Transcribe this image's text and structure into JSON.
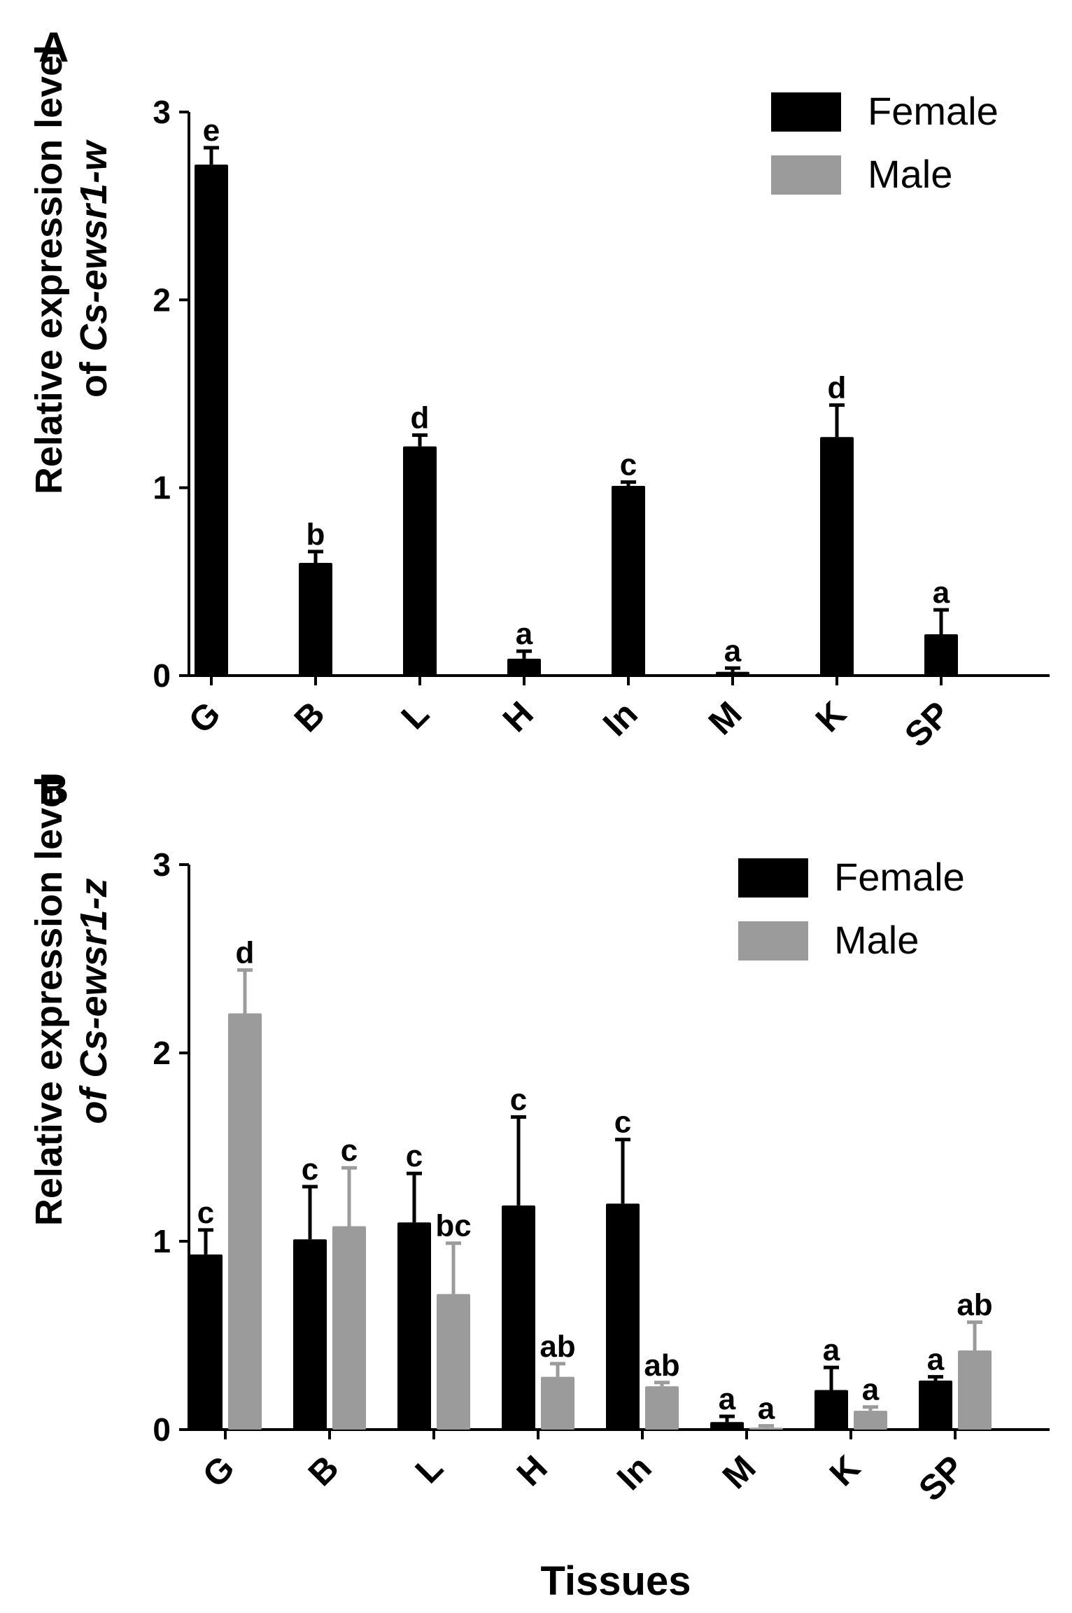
{
  "figure_xlabel": "Tissues",
  "chart_data": [
    {
      "panel": "A",
      "type": "bar",
      "ylabel_line1": "Relative expression level",
      "ylabel_line2_prefix": "of ",
      "ylabel_line2_italic": "Cs-ewsr1-w",
      "ylim": [
        0,
        3
      ],
      "yticks": [
        "0",
        "1",
        "2",
        "3"
      ],
      "categories": [
        "G",
        "B",
        "L",
        "H",
        "In",
        "M",
        "K",
        "SP"
      ],
      "legend": [
        "Female",
        "Male"
      ],
      "series": [
        {
          "name": "Female",
          "color": "#000000",
          "values": [
            2.72,
            0.6,
            1.22,
            0.09,
            1.01,
            0.02,
            1.27,
            0.22
          ],
          "errors": [
            0.09,
            0.06,
            0.06,
            0.04,
            0.02,
            0.02,
            0.17,
            0.13
          ],
          "labels": [
            "e",
            "b",
            "d",
            "a",
            "c",
            "a",
            "d",
            "a"
          ]
        }
      ]
    },
    {
      "panel": "B",
      "type": "bar",
      "ylabel_line1": "Relative expression level",
      "ylabel_line2_prefix": "of ",
      "ylabel_line2_italic": "Cs-ewsr1-z",
      "ylim": [
        0,
        3
      ],
      "yticks": [
        "0",
        "1",
        "2",
        "3"
      ],
      "categories": [
        "G",
        "B",
        "L",
        "H",
        "In",
        "M",
        "K",
        "SP"
      ],
      "legend": [
        "Female",
        "Male"
      ],
      "series": [
        {
          "name": "Female",
          "color": "#000000",
          "values": [
            0.93,
            1.01,
            1.1,
            1.19,
            1.2,
            0.04,
            0.21,
            0.26
          ],
          "errors": [
            0.13,
            0.28,
            0.26,
            0.47,
            0.34,
            0.03,
            0.12,
            0.02
          ],
          "labels": [
            "c",
            "c",
            "c",
            "c",
            "c",
            "a",
            "a",
            "a"
          ]
        },
        {
          "name": "Male",
          "color": "#9b9b9b",
          "values": [
            2.21,
            1.08,
            0.72,
            0.28,
            0.23,
            0.01,
            0.1,
            0.42
          ],
          "errors": [
            0.23,
            0.31,
            0.27,
            0.07,
            0.02,
            0.01,
            0.02,
            0.15
          ],
          "labels": [
            "d",
            "c",
            "bc",
            "ab",
            "ab",
            "a",
            "a",
            "ab"
          ]
        }
      ]
    }
  ]
}
